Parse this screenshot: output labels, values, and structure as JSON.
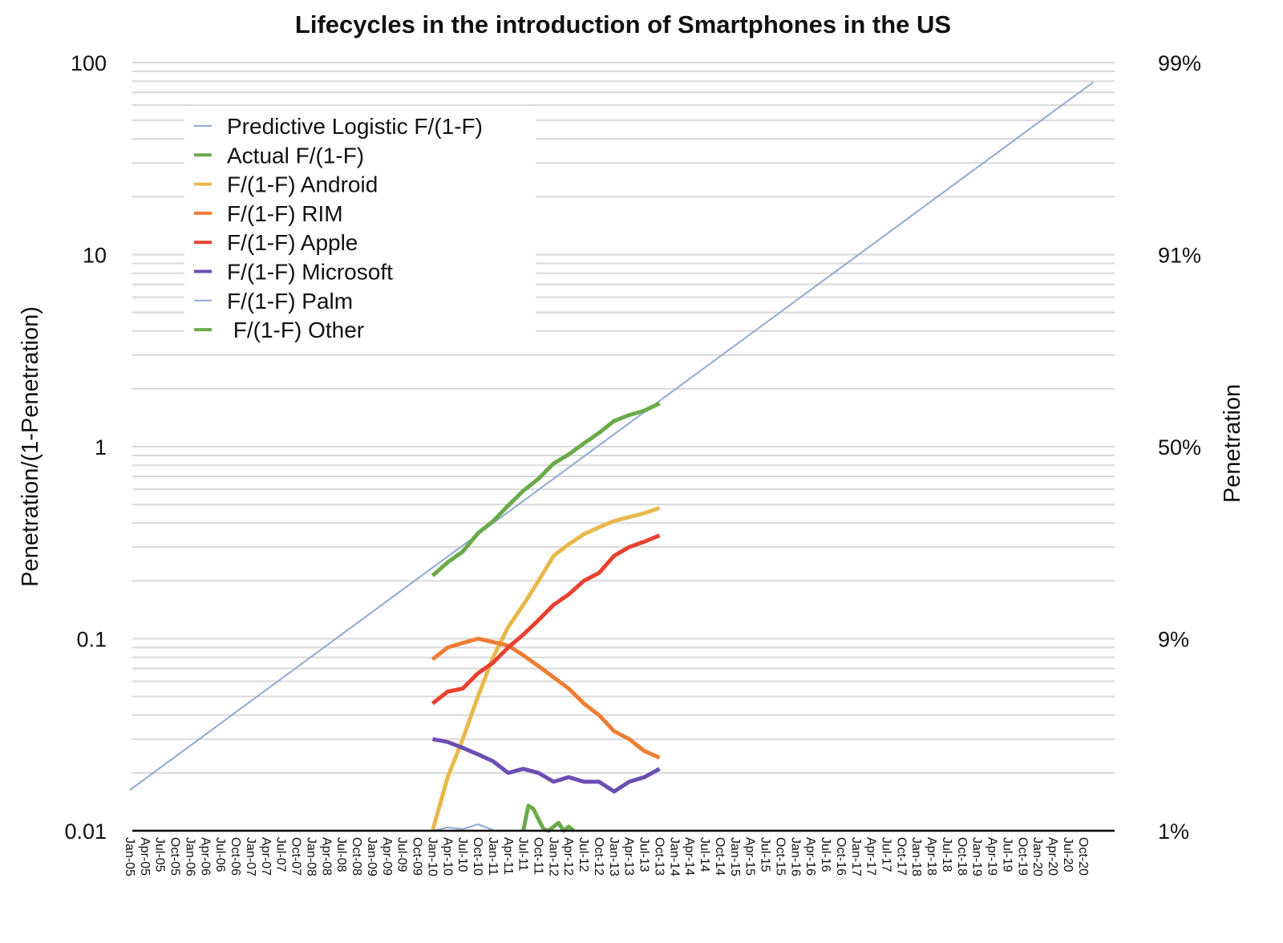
{
  "chart_data": {
    "type": "line",
    "title": "Lifecycles in the introduction of Smartphones in the US",
    "ylabel": "Penetration/(1-Penetration)",
    "ylabel_right": "Penetration",
    "yscale": "log",
    "ylim": [
      0.01,
      100
    ],
    "y_ticks": [
      "0.01",
      "0.1",
      "1",
      "10",
      "100"
    ],
    "y_tick_values": [
      0.01,
      0.1,
      1,
      10,
      100
    ],
    "y_right_ticks": [
      "1%",
      "9%",
      "50%",
      "91%",
      "99%"
    ],
    "grid": true,
    "legend_placement": "top-left",
    "x_ticks": [
      "Jan-05",
      "Apr-05",
      "Jul-05",
      "Oct-05",
      "Jan-06",
      "Apr-06",
      "Jul-06",
      "Oct-06",
      "Jan-07",
      "Apr-07",
      "Jul-07",
      "Oct-07",
      "Jan-08",
      "Apr-08",
      "Jul-08",
      "Oct-08",
      "Jan-09",
      "Apr-09",
      "Jul-09",
      "Oct-09",
      "Jan-10",
      "Apr-10",
      "Jul-10",
      "Oct-10",
      "Jan-11",
      "Apr-11",
      "Jul-11",
      "Oct-11",
      "Jan-12",
      "Apr-12",
      "Jul-12",
      "Oct-12",
      "Jan-13",
      "Apr-13",
      "Jul-13",
      "Oct-13",
      "Jan-14",
      "Apr-14",
      "Jul-14",
      "Oct-14",
      "Jan-15",
      "Apr-15",
      "Jul-15",
      "Oct-15",
      "Jan-16",
      "Apr-16",
      "Jul-16",
      "Oct-16",
      "Jan-17",
      "Apr-17",
      "Jul-17",
      "Oct-17",
      "Jan-18",
      "Apr-18",
      "Jul-18",
      "Oct-18",
      "Jan-19",
      "Apr-19",
      "Jul-19",
      "Oct-19",
      "Jan-20",
      "Apr-20",
      "Jul-20",
      "Oct-20"
    ],
    "series": [
      {
        "name": "Predictive Logistic F/(1-F)",
        "color": "#8eaad4",
        "width": "thin",
        "x": [
          "Jan-05",
          "Dec-20"
        ],
        "y": [
          0.0163,
          79
        ]
      },
      {
        "name": "Actual F/(1-F)",
        "color": "#6aaa4a",
        "width": "thick",
        "x": [
          "Jan-10",
          "Apr-10",
          "Jul-10",
          "Oct-10",
          "Jan-11",
          "Apr-11",
          "Jul-11",
          "Oct-11",
          "Jan-12",
          "Apr-12",
          "Jul-12",
          "Oct-12",
          "Jan-13",
          "Apr-13",
          "Jul-13",
          "Oct-13"
        ],
        "y": [
          0.213,
          0.25,
          0.284,
          0.354,
          0.409,
          0.494,
          0.589,
          0.68,
          0.817,
          0.91,
          1.04,
          1.18,
          1.36,
          1.46,
          1.54,
          1.68
        ]
      },
      {
        "name": "F/(1-F) Android",
        "color": "#e8b84b",
        "width": "thick",
        "x": [
          "Jan-10",
          "Apr-10",
          "Jul-10",
          "Oct-10",
          "Jan-11",
          "Apr-11",
          "Jul-11",
          "Oct-11",
          "Jan-12",
          "Apr-12",
          "Jul-12",
          "Oct-12",
          "Jan-13",
          "Apr-13",
          "Jul-13",
          "Oct-13"
        ],
        "y": [
          0.01,
          0.019,
          0.03,
          0.05,
          0.08,
          0.115,
          0.15,
          0.2,
          0.27,
          0.31,
          0.35,
          0.38,
          0.41,
          0.43,
          0.45,
          0.48
        ]
      },
      {
        "name": "F/(1-F) RIM",
        "color": "#ee7d34",
        "width": "thick",
        "x": [
          "Jan-10",
          "Apr-10",
          "Jul-10",
          "Oct-10",
          "Jan-11",
          "Apr-11",
          "Jul-11",
          "Oct-11",
          "Jan-12",
          "Apr-12",
          "Jul-12",
          "Oct-12",
          "Jan-13",
          "Apr-13",
          "Jul-13",
          "Oct-13"
        ],
        "y": [
          0.078,
          0.09,
          0.095,
          0.1,
          0.096,
          0.092,
          0.082,
          0.072,
          0.063,
          0.055,
          0.046,
          0.04,
          0.033,
          0.03,
          0.026,
          0.024
        ]
      },
      {
        "name": "F/(1-F) Apple",
        "color": "#e8412f",
        "width": "thick",
        "x": [
          "Jan-10",
          "Apr-10",
          "Jul-10",
          "Oct-10",
          "Jan-11",
          "Apr-11",
          "Jul-11",
          "Oct-11",
          "Jan-12",
          "Apr-12",
          "Jul-12",
          "Oct-12",
          "Jan-13",
          "Apr-13",
          "Jul-13",
          "Oct-13"
        ],
        "y": [
          0.046,
          0.053,
          0.055,
          0.066,
          0.075,
          0.09,
          0.105,
          0.125,
          0.15,
          0.17,
          0.2,
          0.22,
          0.27,
          0.3,
          0.32,
          0.345
        ]
      },
      {
        "name": "F/(1-F) Microsoft",
        "color": "#6a4fb2",
        "width": "thick",
        "x": [
          "Jan-10",
          "Apr-10",
          "Jul-10",
          "Oct-10",
          "Jan-11",
          "Apr-11",
          "Jul-11",
          "Oct-11",
          "Jan-12",
          "Apr-12",
          "Jul-12",
          "Oct-12",
          "Jan-13",
          "Apr-13",
          "Jul-13",
          "Oct-13"
        ],
        "y": [
          0.03,
          0.029,
          0.027,
          0.025,
          0.023,
          0.02,
          0.021,
          0.02,
          0.018,
          0.019,
          0.018,
          0.018,
          0.016,
          0.018,
          0.019,
          0.021
        ]
      },
      {
        "name": "F/(1-F) Palm",
        "color": "#8eaad4",
        "width": "thin",
        "x": [
          "Jan-10",
          "Apr-10",
          "Jul-10",
          "Oct-10",
          "Jan-11"
        ],
        "y": [
          0.01,
          0.0104,
          0.0102,
          0.0108,
          0.0101
        ]
      },
      {
        "name": " F/(1-F) Other",
        "color": "#6aaa4a",
        "width": "thick",
        "x": [
          "Jul-11",
          "Aug-11",
          "Sep-11",
          "Oct-11",
          "Nov-11",
          "Dec-11",
          "Jan-12",
          "Feb-12",
          "Mar-12",
          "Apr-12",
          "May-12"
        ],
        "y": [
          0.01,
          0.0135,
          0.013,
          0.0115,
          0.0102,
          0.01,
          0.0105,
          0.011,
          0.01,
          0.0105,
          0.01
        ]
      }
    ]
  }
}
